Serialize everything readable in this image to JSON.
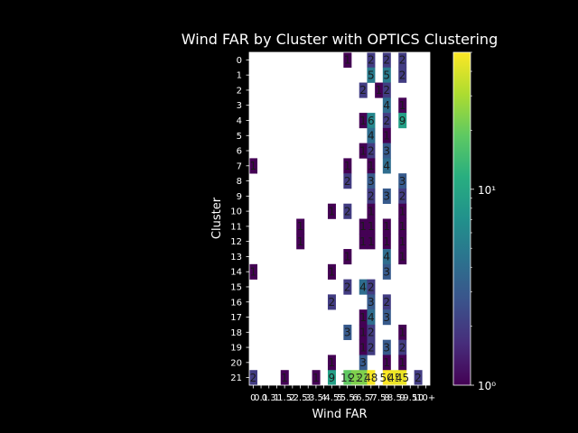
{
  "chart_data": {
    "type": "heatmap",
    "title": "Wind FAR by Cluster with OPTICS Clustering",
    "xlabel": "Wind FAR",
    "ylabel": "Cluster",
    "x_categories": [
      "0",
      "0.1",
      "0.3",
      "1",
      "1.5",
      "2",
      "2.5",
      "3",
      "3.5",
      "4",
      "4.5",
      "5",
      "5.5",
      "6",
      "6.5",
      "7",
      "7.5",
      "8",
      "8.5",
      "9",
      "9.5",
      "10",
      "10+"
    ],
    "x_tick_labels": [
      "0",
      "0.1",
      "0.3",
      "1",
      "1.5",
      "2",
      "2.5",
      "3",
      "3.5",
      "4",
      "4.5",
      "5",
      "5.5",
      "6",
      "6.5",
      "7",
      "7.5",
      "8",
      "8.5",
      "9",
      "9.5",
      "10",
      "10+"
    ],
    "y_categories": [
      "0",
      "1",
      "2",
      "3",
      "4",
      "5",
      "6",
      "7",
      "8",
      "9",
      "10",
      "11",
      "12",
      "13",
      "14",
      "15",
      "16",
      "17",
      "18",
      "19",
      "20",
      "21"
    ],
    "cells": [
      {
        "row": 0,
        "col": 12,
        "value": 1
      },
      {
        "row": 0,
        "col": 15,
        "value": 2
      },
      {
        "row": 0,
        "col": 17,
        "value": 2
      },
      {
        "row": 0,
        "col": 19,
        "value": 2
      },
      {
        "row": 1,
        "col": 15,
        "value": 5
      },
      {
        "row": 1,
        "col": 17,
        "value": 5
      },
      {
        "row": 1,
        "col": 19,
        "value": 2
      },
      {
        "row": 2,
        "col": 14,
        "value": 2
      },
      {
        "row": 2,
        "col": 16,
        "value": 1
      },
      {
        "row": 2,
        "col": 17,
        "value": 2
      },
      {
        "row": 3,
        "col": 17,
        "value": 4
      },
      {
        "row": 3,
        "col": 19,
        "value": 1
      },
      {
        "row": 4,
        "col": 14,
        "value": 1
      },
      {
        "row": 4,
        "col": 15,
        "value": 6
      },
      {
        "row": 4,
        "col": 17,
        "value": 2
      },
      {
        "row": 4,
        "col": 19,
        "value": 9
      },
      {
        "row": 5,
        "col": 15,
        "value": 4
      },
      {
        "row": 5,
        "col": 17,
        "value": 1
      },
      {
        "row": 6,
        "col": 14,
        "value": 1
      },
      {
        "row": 6,
        "col": 15,
        "value": 2
      },
      {
        "row": 6,
        "col": 17,
        "value": 3
      },
      {
        "row": 7,
        "col": 0,
        "value": 1
      },
      {
        "row": 7,
        "col": 12,
        "value": 1
      },
      {
        "row": 7,
        "col": 15,
        "value": 1
      },
      {
        "row": 7,
        "col": 17,
        "value": 4
      },
      {
        "row": 8,
        "col": 12,
        "value": 2
      },
      {
        "row": 8,
        "col": 15,
        "value": 3
      },
      {
        "row": 8,
        "col": 19,
        "value": 3
      },
      {
        "row": 9,
        "col": 15,
        "value": 2
      },
      {
        "row": 9,
        "col": 17,
        "value": 3
      },
      {
        "row": 9,
        "col": 19,
        "value": 2
      },
      {
        "row": 10,
        "col": 10,
        "value": 1
      },
      {
        "row": 10,
        "col": 12,
        "value": 2
      },
      {
        "row": 10,
        "col": 15,
        "value": 1
      },
      {
        "row": 10,
        "col": 19,
        "value": 1
      },
      {
        "row": 11,
        "col": 6,
        "value": 1
      },
      {
        "row": 11,
        "col": 14,
        "value": 1
      },
      {
        "row": 11,
        "col": 15,
        "value": 1
      },
      {
        "row": 11,
        "col": 17,
        "value": 1
      },
      {
        "row": 11,
        "col": 19,
        "value": 1
      },
      {
        "row": 12,
        "col": 6,
        "value": 1
      },
      {
        "row": 12,
        "col": 14,
        "value": 1
      },
      {
        "row": 12,
        "col": 15,
        "value": 1
      },
      {
        "row": 12,
        "col": 17,
        "value": 1
      },
      {
        "row": 12,
        "col": 19,
        "value": 1
      },
      {
        "row": 13,
        "col": 12,
        "value": 1
      },
      {
        "row": 13,
        "col": 17,
        "value": 4
      },
      {
        "row": 13,
        "col": 19,
        "value": 1
      },
      {
        "row": 14,
        "col": 0,
        "value": 1
      },
      {
        "row": 14,
        "col": 10,
        "value": 1
      },
      {
        "row": 14,
        "col": 17,
        "value": 3
      },
      {
        "row": 15,
        "col": 12,
        "value": 2
      },
      {
        "row": 15,
        "col": 14,
        "value": 4
      },
      {
        "row": 15,
        "col": 15,
        "value": 2
      },
      {
        "row": 16,
        "col": 10,
        "value": 2
      },
      {
        "row": 16,
        "col": 15,
        "value": 3
      },
      {
        "row": 16,
        "col": 17,
        "value": 2
      },
      {
        "row": 17,
        "col": 14,
        "value": 1
      },
      {
        "row": 17,
        "col": 15,
        "value": 4
      },
      {
        "row": 17,
        "col": 17,
        "value": 3
      },
      {
        "row": 18,
        "col": 12,
        "value": 3
      },
      {
        "row": 18,
        "col": 14,
        "value": 1
      },
      {
        "row": 18,
        "col": 15,
        "value": 2
      },
      {
        "row": 18,
        "col": 19,
        "value": 1
      },
      {
        "row": 19,
        "col": 14,
        "value": 1
      },
      {
        "row": 19,
        "col": 15,
        "value": 2
      },
      {
        "row": 19,
        "col": 17,
        "value": 3
      },
      {
        "row": 19,
        "col": 19,
        "value": 2
      },
      {
        "row": 20,
        "col": 10,
        "value": 1
      },
      {
        "row": 20,
        "col": 14,
        "value": 3
      },
      {
        "row": 20,
        "col": 17,
        "value": 1
      },
      {
        "row": 20,
        "col": 19,
        "value": 1
      },
      {
        "row": 21,
        "col": 0,
        "value": 2
      },
      {
        "row": 21,
        "col": 4,
        "value": 1
      },
      {
        "row": 21,
        "col": 8,
        "value": 1
      },
      {
        "row": 21,
        "col": 10,
        "value": 9
      },
      {
        "row": 21,
        "col": 12,
        "value": 19
      },
      {
        "row": 21,
        "col": 13,
        "value": 23
      },
      {
        "row": 21,
        "col": 14,
        "value": 23
      },
      {
        "row": 21,
        "col": 15,
        "value": 48
      },
      {
        "row": 21,
        "col": 17,
        "value": 50
      },
      {
        "row": 21,
        "col": 18,
        "value": 45
      },
      {
        "row": 21,
        "col": 19,
        "value": 45
      },
      {
        "row": 21,
        "col": 21,
        "value": 2
      }
    ],
    "color_scale": "log",
    "colormap": "viridis",
    "vmin": 1,
    "vmax": 50,
    "colorbar_ticks": [
      {
        "value": 1,
        "label": "10⁰"
      },
      {
        "value": 10,
        "label": "10¹"
      }
    ],
    "grid": false,
    "background": "#000000"
  }
}
